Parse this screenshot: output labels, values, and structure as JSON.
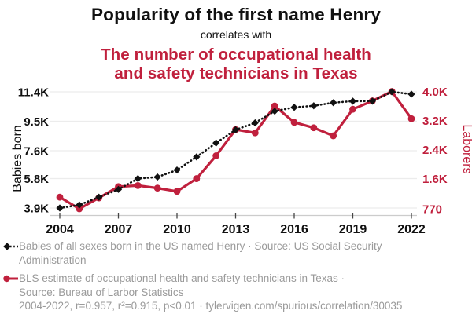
{
  "header": {
    "title": "Popularity of the first name Henry",
    "connector": "correlates with",
    "subtitle_line1": "The number of occupational health",
    "subtitle_line2": "and safety technicians in Texas"
  },
  "colors": {
    "accent_red": "#c0203d",
    "series_black": "#111111",
    "legend_gray": "#9a9a9a",
    "gridline": "#ececec",
    "axis_line": "#cccccc",
    "tick_mark": "#444444"
  },
  "chart_data": {
    "type": "line",
    "x": [
      2004,
      2005,
      2006,
      2007,
      2008,
      2009,
      2010,
      2011,
      2012,
      2013,
      2014,
      2015,
      2016,
      2017,
      2018,
      2019,
      2020,
      2021,
      2022
    ],
    "x_ticks": [
      2004,
      2007,
      2010,
      2013,
      2016,
      2019,
      2022
    ],
    "x_tick_labels": [
      "2004",
      "2007",
      "2010",
      "2013",
      "2016",
      "2019",
      "2022"
    ],
    "left_axis": {
      "label": "Babies born",
      "range": [
        3900,
        11400
      ],
      "ticks": [
        3900,
        5800,
        7600,
        9500,
        11400
      ],
      "tick_labels": [
        "3.9K",
        "5.8K",
        "7.6K",
        "9.5K",
        "11.4K"
      ]
    },
    "right_axis": {
      "label": "Laborers",
      "range": [
        770,
        4000
      ],
      "ticks": [
        770,
        1600,
        2400,
        3200,
        4000
      ],
      "tick_labels": [
        "770",
        "1.6K",
        "2.4K",
        "3.2K",
        "4.0K"
      ]
    },
    "series": [
      {
        "name": "Babies of all sexes born in the US named Henry",
        "axis": "left",
        "color": "#111111",
        "line_style": "dotted",
        "marker": "diamond",
        "values": [
          3900,
          4100,
          4600,
          5100,
          5800,
          5900,
          6350,
          7200,
          8100,
          8950,
          9400,
          10150,
          10400,
          10500,
          10700,
          10800,
          10800,
          11400,
          11250
        ]
      },
      {
        "name": "BLS estimate of occupational health and safety technicians in Texas",
        "axis": "right",
        "color": "#c0203d",
        "line_style": "solid",
        "marker": "circle",
        "values": [
          1090,
          770,
          1070,
          1380,
          1410,
          1340,
          1250,
          1600,
          2230,
          2950,
          2860,
          3600,
          3150,
          3000,
          2780,
          3510,
          3740,
          4000,
          3250
        ]
      }
    ],
    "grid": "horizontal-only",
    "legend_position": "bottom-left"
  },
  "legend": [
    {
      "marker": "black-diamond-dotted-line",
      "lines": [
        "Babies of all sexes born in the US named Henry · Source: US Social Security",
        "Administration"
      ]
    },
    {
      "marker": "red-circle-solid-line",
      "lines": [
        "BLS estimate of occupational health and safety technicians in Texas ·",
        "Source: Bureau of Larbor Statistics"
      ]
    }
  ],
  "footer": "2004-2022, r=0.957, r²=0.915, p<0.01 · tylervigen.com/spurious/correlation/30035"
}
